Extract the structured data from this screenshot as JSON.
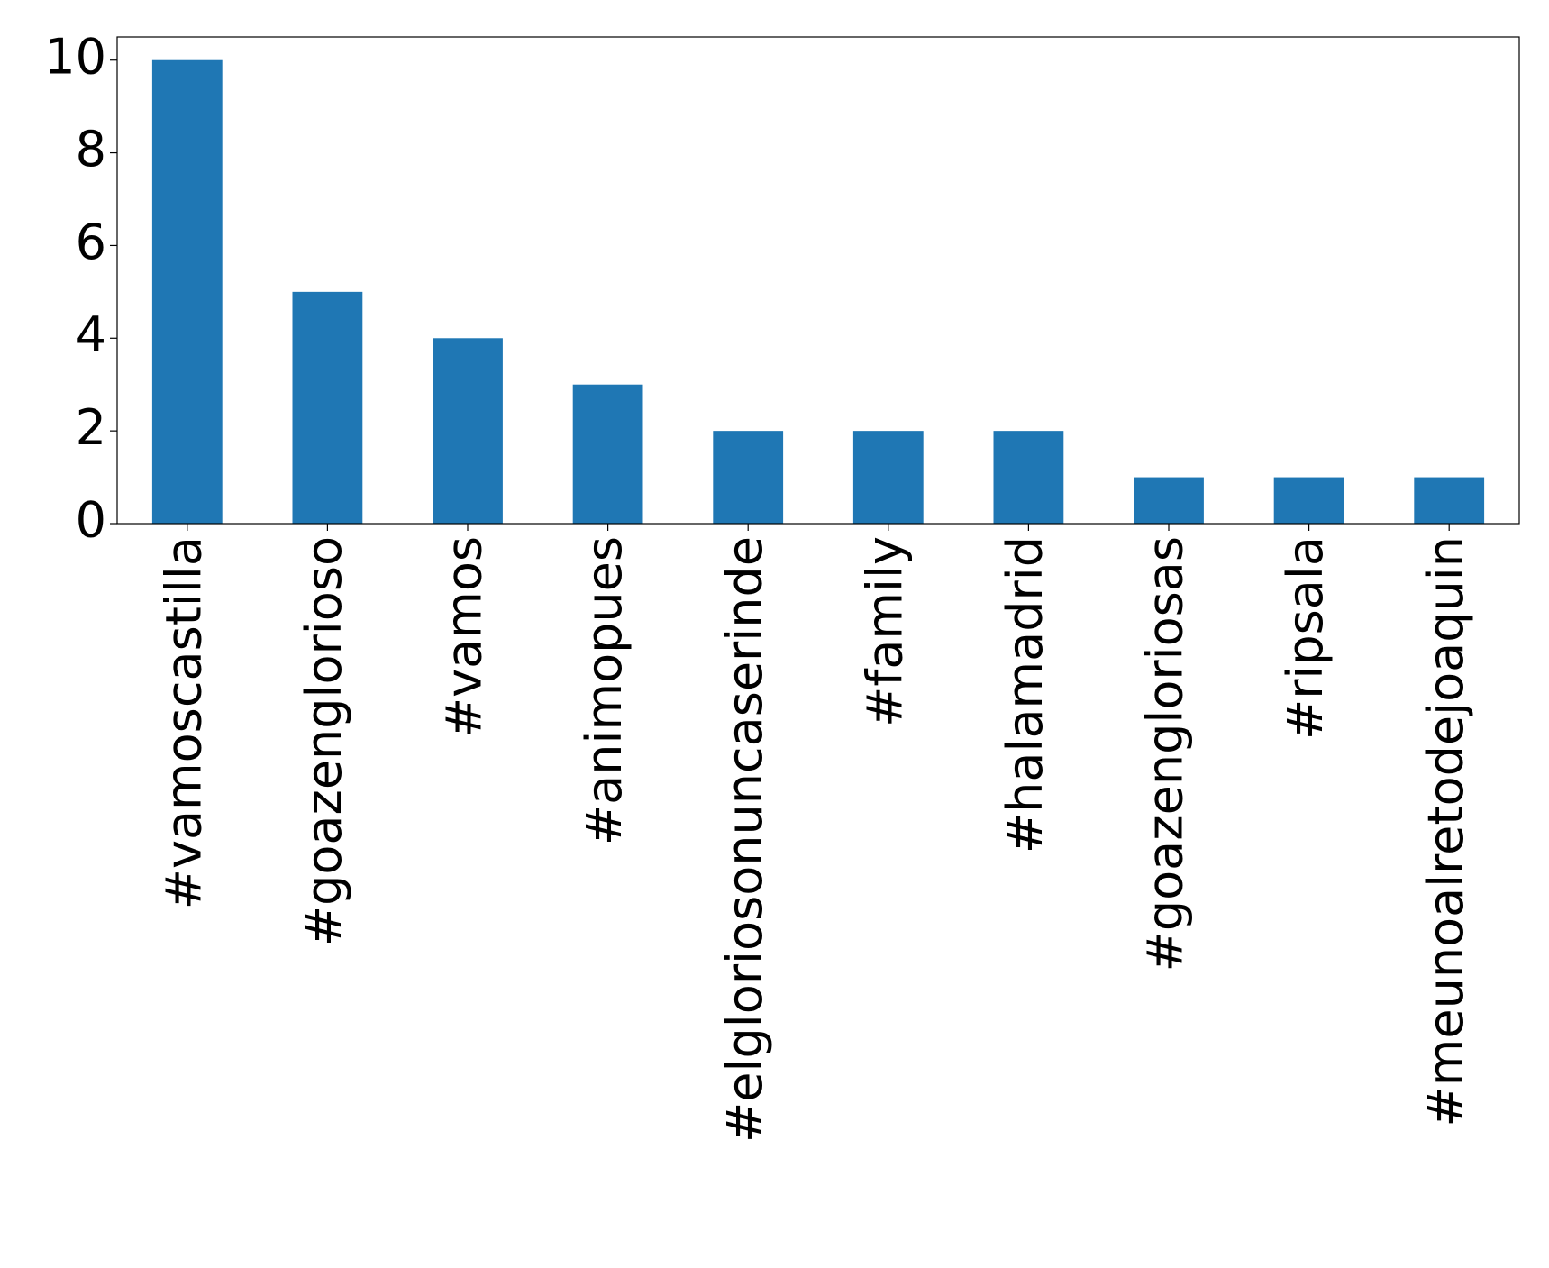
{
  "chart_data": {
    "type": "bar",
    "categories": [
      "#vamoscastilla",
      "#goazenglorioso",
      "#vamos",
      "#animopues",
      "#elgloriosonuncaserinde",
      "#family",
      "#halamadrid",
      "#goazengloriosas",
      "#ripsala",
      "#meunoalretodejoaquin"
    ],
    "values": [
      10,
      5,
      4,
      3,
      2,
      2,
      2,
      1,
      1,
      1
    ],
    "color": "#1f77b4",
    "ylim": [
      0,
      10.5
    ],
    "yticks": [
      0,
      2,
      4,
      6,
      8,
      10
    ],
    "grid": false
  }
}
